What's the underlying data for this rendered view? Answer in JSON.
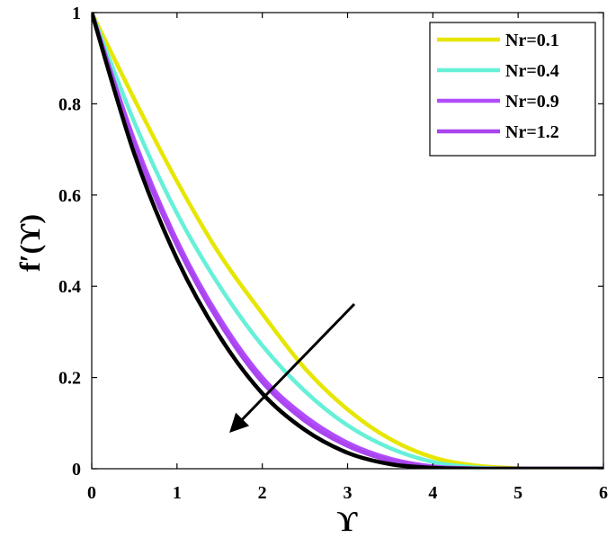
{
  "chart_data": {
    "type": "line",
    "title": "",
    "xlabel": "ϒ",
    "ylabel": "f′(ϒ)",
    "xlim": [
      0,
      6
    ],
    "ylim": [
      0,
      1
    ],
    "x_ticks": [
      "0",
      "1",
      "2",
      "3",
      "4",
      "5",
      "6"
    ],
    "y_ticks": [
      "0",
      "0.2",
      "0.4",
      "0.6",
      "0.8",
      "1"
    ],
    "grid": false,
    "legend_position": "top-right",
    "annotation": "arrow indicating decreasing trend as Nr increases",
    "series": [
      {
        "name": "Nr=0.1",
        "color": "#e6e600",
        "x": [
          0,
          0.5,
          1,
          1.5,
          2,
          2.5,
          3,
          3.5,
          4,
          4.5,
          5,
          5.4,
          6
        ],
        "y": [
          1,
          0.81,
          0.63,
          0.47,
          0.34,
          0.22,
          0.13,
          0.065,
          0.025,
          0.007,
          0.001,
          0,
          0
        ]
      },
      {
        "name": "Nr=0.4",
        "color": "#66f0d8",
        "x": [
          0,
          0.5,
          1,
          1.5,
          2,
          2.5,
          3,
          3.5,
          4,
          4.5,
          5,
          6
        ],
        "y": [
          1,
          0.76,
          0.56,
          0.4,
          0.27,
          0.17,
          0.095,
          0.045,
          0.015,
          0.003,
          0,
          0
        ]
      },
      {
        "name": "Nr=0.9",
        "color": "#b24dff",
        "x": [
          0,
          0.5,
          1,
          1.5,
          2,
          2.5,
          3,
          3.5,
          4,
          4.5,
          5,
          6
        ],
        "y": [
          1,
          0.72,
          0.5,
          0.33,
          0.2,
          0.115,
          0.057,
          0.022,
          0.005,
          0.0005,
          0,
          0
        ]
      },
      {
        "name": "Nr=1.2",
        "color": "#aa44ee",
        "x": [
          0,
          0.5,
          1,
          1.5,
          2,
          2.5,
          3,
          3.5,
          4,
          4.5,
          5,
          6
        ],
        "y": [
          1,
          0.71,
          0.49,
          0.32,
          0.19,
          0.105,
          0.05,
          0.018,
          0.004,
          0.0003,
          0,
          0
        ]
      },
      {
        "name": "",
        "color": "#000000",
        "x": [
          0,
          0.5,
          1,
          1.5,
          2,
          2.5,
          3,
          3.5,
          4,
          4.5,
          5,
          6
        ],
        "y": [
          1,
          0.69,
          0.46,
          0.29,
          0.165,
          0.085,
          0.035,
          0.01,
          0.002,
          0,
          0,
          0
        ]
      }
    ]
  }
}
